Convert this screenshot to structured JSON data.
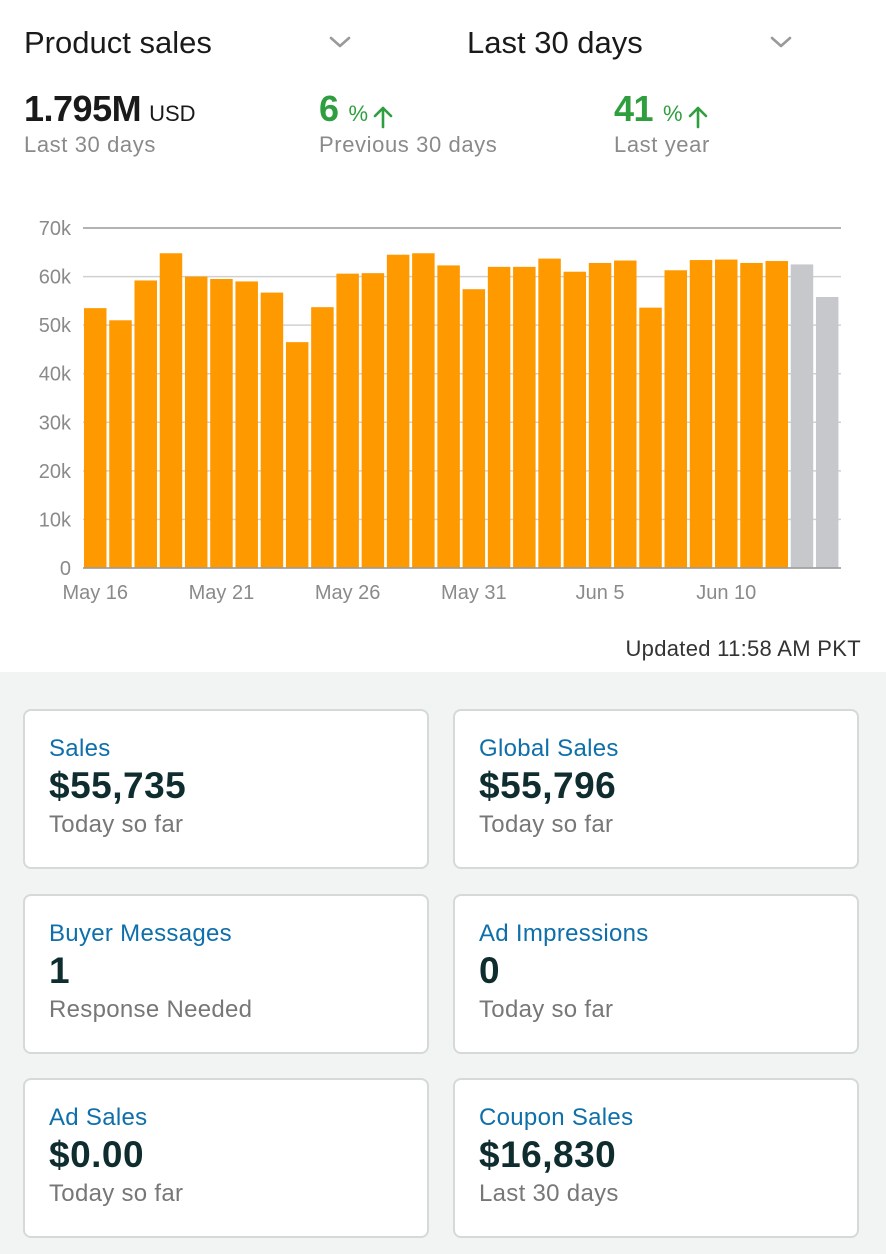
{
  "header": {
    "metric_selector": "Product sales",
    "range_selector": "Last 30 days"
  },
  "summary": {
    "total_value": "1.795M",
    "total_unit": "USD",
    "total_caption": "Last 30 days",
    "prev_change": "6",
    "prev_unit": "%",
    "prev_caption": "Previous 30 days",
    "year_change": "41",
    "year_unit": "%",
    "year_caption": "Last year"
  },
  "chart_data": {
    "type": "bar",
    "ylim": [
      0,
      70000
    ],
    "y_ticks": [
      0,
      10000,
      20000,
      30000,
      40000,
      50000,
      60000,
      70000
    ],
    "y_tick_labels": [
      "0",
      "10k",
      "20k",
      "30k",
      "40k",
      "50k",
      "60k",
      "70k"
    ],
    "x_tick_labels": [
      {
        "index": 0,
        "label": "May 16"
      },
      {
        "index": 5,
        "label": "May 21"
      },
      {
        "index": 10,
        "label": "May 26"
      },
      {
        "index": 15,
        "label": "May 31"
      },
      {
        "index": 20,
        "label": "Jun 5"
      },
      {
        "index": 25,
        "label": "Jun 10"
      }
    ],
    "values": [
      53500,
      51000,
      59200,
      64800,
      60000,
      59500,
      59000,
      56700,
      46500,
      53700,
      60600,
      60700,
      64500,
      64800,
      62300,
      57400,
      62000,
      62000,
      63700,
      61000,
      62800,
      63300,
      53600,
      61300,
      63400,
      63500,
      62800,
      63200,
      62500,
      55800
    ],
    "bar_colors": [
      "#ff9900",
      "#ff9900",
      "#ff9900",
      "#ff9900",
      "#ff9900",
      "#ff9900",
      "#ff9900",
      "#ff9900",
      "#ff9900",
      "#ff9900",
      "#ff9900",
      "#ff9900",
      "#ff9900",
      "#ff9900",
      "#ff9900",
      "#ff9900",
      "#ff9900",
      "#ff9900",
      "#ff9900",
      "#ff9900",
      "#ff9900",
      "#ff9900",
      "#ff9900",
      "#ff9900",
      "#ff9900",
      "#ff9900",
      "#ff9900",
      "#ff9900",
      "#c7c8cc",
      "#c7c8cc"
    ],
    "grid": true
  },
  "updated_text": "Updated 11:58 AM PKT",
  "cards": [
    {
      "title": "Sales",
      "value": "$55,735",
      "sub": "Today so far"
    },
    {
      "title": "Global Sales",
      "value": "$55,796",
      "sub": "Today so far"
    },
    {
      "title": "Buyer Messages",
      "value": "1",
      "sub": "Response Needed"
    },
    {
      "title": "Ad Impressions",
      "value": "0",
      "sub": "Today so far"
    },
    {
      "title": "Ad Sales",
      "value": "$0.00",
      "sub": "Today so far"
    },
    {
      "title": "Coupon Sales",
      "value": "$16,830",
      "sub": "Last 30 days"
    }
  ],
  "colors": {
    "accent_green": "#2e9e3f",
    "bar_orange": "#ff9900",
    "bar_gray": "#c7c8cc",
    "link_blue": "#0e6faa"
  }
}
